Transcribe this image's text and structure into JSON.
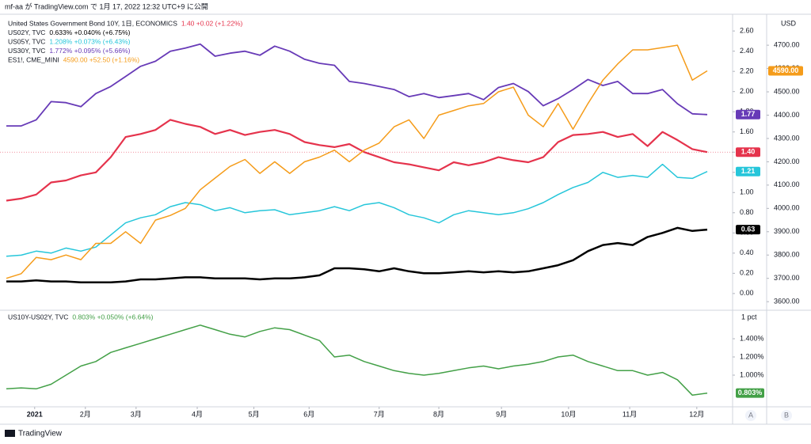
{
  "header": {
    "published": "mf-aa が TradingView.com で 1月 17, 2022 12:32 UTC+9 に公開",
    "brand": "TradingView",
    "scale_buttons": [
      "A",
      "B"
    ]
  },
  "chart_data": [
    {
      "type": "line",
      "left_unit": null,
      "right_unit": "USD",
      "ylim": [
        -0.15,
        2.75
      ],
      "yticks": [
        {
          "value": 0,
          "label": "0.00"
        },
        {
          "value": 0.2,
          "label": "0.20"
        },
        {
          "value": 0.4,
          "label": "0.40"
        },
        {
          "value": 0.6,
          "label": "0.60"
        },
        {
          "value": 0.8,
          "label": "0.80"
        },
        {
          "value": 1,
          "label": "1.00"
        },
        {
          "value": 1.2,
          "label": "1.20"
        },
        {
          "value": 1.4,
          "label": "1.40"
        },
        {
          "value": 1.6,
          "label": "1.60"
        },
        {
          "value": 1.8,
          "label": "1.80"
        },
        {
          "value": 2,
          "label": "2.00"
        },
        {
          "value": 2.2,
          "label": "2.20"
        },
        {
          "value": 2.4,
          "label": "2.40"
        },
        {
          "value": 2.6,
          "label": "2.60"
        }
      ],
      "y2lim": [
        3570,
        4826
      ],
      "y2ticks": [
        {
          "value": 3600,
          "label": "3600.00"
        },
        {
          "value": 3700,
          "label": "3700.00"
        },
        {
          "value": 3800,
          "label": "3800.00"
        },
        {
          "value": 3900,
          "label": "3900.00"
        },
        {
          "value": 4000,
          "label": "4000.00"
        },
        {
          "value": 4100,
          "label": "4100.00"
        },
        {
          "value": 4200,
          "label": "4200.00"
        },
        {
          "value": 4300,
          "label": "4300.00"
        },
        {
          "value": 4400,
          "label": "4400.00"
        },
        {
          "value": 4500,
          "label": "4500.00"
        },
        {
          "value": 4600,
          "label": "4600.00"
        },
        {
          "value": 4700,
          "label": "4700.00"
        }
      ],
      "series": [
        {
          "name": "United States Government Bond 10Y, 1日, ECONOMICS",
          "legend_values": "1.40 +0.02 (+1.22%)",
          "color": "#e5334c",
          "width": 2.2,
          "last_label": "1.40",
          "price_line": true,
          "values": [
            0.92,
            0.94,
            0.98,
            1.1,
            1.12,
            1.17,
            1.2,
            1.35,
            1.55,
            1.58,
            1.62,
            1.72,
            1.68,
            1.65,
            1.58,
            1.62,
            1.57,
            1.6,
            1.62,
            1.58,
            1.5,
            1.47,
            1.45,
            1.48,
            1.4,
            1.35,
            1.3,
            1.28,
            1.25,
            1.22,
            1.3,
            1.27,
            1.3,
            1.35,
            1.32,
            1.3,
            1.35,
            1.5,
            1.57,
            1.58,
            1.6,
            1.55,
            1.58,
            1.46,
            1.6,
            1.52,
            1.43,
            1.4
          ]
        },
        {
          "name": "US02Y, TVC",
          "legend_values": "0.633% +0.040% (+6.75%)",
          "color": "#000000",
          "width": 2.5,
          "last_label": "0.63",
          "values": [
            0.12,
            0.12,
            0.13,
            0.12,
            0.12,
            0.11,
            0.11,
            0.11,
            0.12,
            0.14,
            0.14,
            0.15,
            0.16,
            0.16,
            0.15,
            0.15,
            0.15,
            0.14,
            0.15,
            0.15,
            0.16,
            0.18,
            0.25,
            0.25,
            0.24,
            0.22,
            0.25,
            0.22,
            0.2,
            0.2,
            0.21,
            0.22,
            0.21,
            0.22,
            0.21,
            0.22,
            0.25,
            0.28,
            0.33,
            0.42,
            0.48,
            0.5,
            0.48,
            0.56,
            0.6,
            0.65,
            0.62,
            0.633
          ]
        },
        {
          "name": "US05Y, TVC",
          "legend_values": "1.208% +0.073% (+6.43%)",
          "color": "#26c6da",
          "width": 1.5,
          "last_label": "1.21",
          "values": [
            0.37,
            0.38,
            0.42,
            0.4,
            0.45,
            0.42,
            0.46,
            0.58,
            0.7,
            0.75,
            0.78,
            0.86,
            0.9,
            0.88,
            0.82,
            0.85,
            0.8,
            0.82,
            0.83,
            0.78,
            0.8,
            0.82,
            0.86,
            0.82,
            0.88,
            0.9,
            0.85,
            0.78,
            0.75,
            0.7,
            0.78,
            0.82,
            0.8,
            0.78,
            0.8,
            0.84,
            0.9,
            0.98,
            1.05,
            1.1,
            1.2,
            1.15,
            1.17,
            1.15,
            1.28,
            1.15,
            1.14,
            1.208
          ]
        },
        {
          "name": "US30Y, TVC",
          "legend_values": "1.772% +0.095% (+5.66%)",
          "color": "#673ab7",
          "width": 1.8,
          "last_label": "1.77",
          "values": [
            1.66,
            1.66,
            1.72,
            1.9,
            1.89,
            1.85,
            1.98,
            2.05,
            2.15,
            2.25,
            2.3,
            2.4,
            2.43,
            2.47,
            2.35,
            2.38,
            2.4,
            2.36,
            2.45,
            2.4,
            2.32,
            2.28,
            2.26,
            2.1,
            2.08,
            2.05,
            2.02,
            1.95,
            1.98,
            1.94,
            1.96,
            1.98,
            1.92,
            2.04,
            2.08,
            2.0,
            1.86,
            1.93,
            2.02,
            2.12,
            2.06,
            2.1,
            1.98,
            1.98,
            2.02,
            1.88,
            1.78,
            1.772
          ]
        },
        {
          "name": "ES1!, CME_MINI",
          "legend_values": "4590.00 +52.50 (+1.16%)",
          "color": "#f59c1a",
          "width": 1.5,
          "last_label": "4590.00",
          "axis": "y2",
          "values": [
            3700,
            3720,
            3790,
            3780,
            3800,
            3780,
            3850,
            3850,
            3900,
            3850,
            3950,
            3970,
            4000,
            4080,
            4130,
            4180,
            4210,
            4150,
            4200,
            4150,
            4200,
            4220,
            4250,
            4200,
            4250,
            4280,
            4350,
            4380,
            4300,
            4400,
            4420,
            4440,
            4450,
            4500,
            4520,
            4400,
            4350,
            4450,
            4340,
            4450,
            4550,
            4620,
            4680,
            4680,
            4690,
            4700,
            4550,
            4590
          ]
        }
      ]
    },
    {
      "type": "line",
      "right_unit": "1 pct",
      "ylim": [
        0.687,
        1.687
      ],
      "yticks": [
        {
          "value": 1,
          "label": "1.000%"
        },
        {
          "value": 1.2,
          "label": "1.200%"
        },
        {
          "value": 1.4,
          "label": "1.400%"
        }
      ],
      "xlim": [
        0,
        47
      ],
      "xticks": [
        {
          "value": 1.9,
          "label": "2021"
        },
        {
          "value": 5.3,
          "label": "2月"
        },
        {
          "value": 8.7,
          "label": "3月"
        },
        {
          "value": 12.8,
          "label": "4月"
        },
        {
          "value": 16.6,
          "label": "5月"
        },
        {
          "value": 20.3,
          "label": "6月"
        },
        {
          "value": 25.0,
          "label": "7月"
        },
        {
          "value": 29.0,
          "label": "8月"
        },
        {
          "value": 33.2,
          "label": "9月"
        },
        {
          "value": 37.7,
          "label": "10月"
        },
        {
          "value": 41.8,
          "label": "11月"
        },
        {
          "value": 46.3,
          "label": "12月"
        }
      ],
      "series": [
        {
          "name": "US10Y-US02Y, TVC",
          "legend_values": "0.803% +0.050% (+6.64%)",
          "color": "#43a047",
          "width": 1.5,
          "last_label": "0.803%",
          "values": [
            0.85,
            0.86,
            0.85,
            0.9,
            1.0,
            1.1,
            1.15,
            1.25,
            1.3,
            1.35,
            1.4,
            1.45,
            1.5,
            1.55,
            1.5,
            1.45,
            1.42,
            1.48,
            1.52,
            1.5,
            1.44,
            1.38,
            1.2,
            1.22,
            1.15,
            1.1,
            1.05,
            1.02,
            1.0,
            1.02,
            1.05,
            1.08,
            1.1,
            1.07,
            1.1,
            1.12,
            1.15,
            1.2,
            1.22,
            1.15,
            1.1,
            1.05,
            1.05,
            1.0,
            1.03,
            0.95,
            0.78,
            0.803
          ]
        }
      ]
    }
  ]
}
